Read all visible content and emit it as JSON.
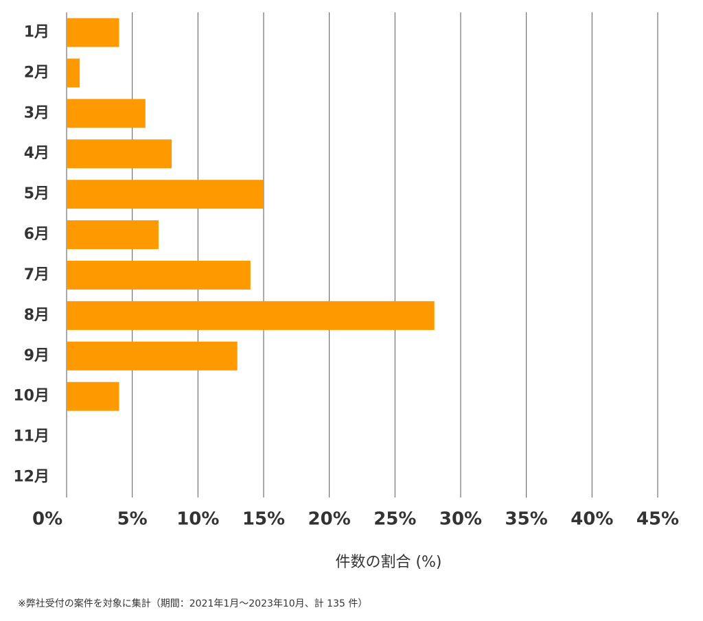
{
  "chart_data": {
    "type": "barh",
    "x_axis_label": "件数の割合 (%)",
    "footnote": "※弊社受付の案件を対象に集計（期間：2021年1月～2023年10月、計 135 件）",
    "categories": [
      "1月",
      "2月",
      "3月",
      "4月",
      "5月",
      "6月",
      "7月",
      "8月",
      "9月",
      "10月",
      "11月",
      "12月"
    ],
    "values": [
      4.0,
      1.0,
      6.0,
      8.0,
      15.0,
      7.0,
      14.0,
      28.0,
      13.0,
      4.0,
      0,
      0
    ],
    "color": "#ff9900",
    "xlim": [
      0,
      45
    ],
    "xticks": [
      {
        "value": 0,
        "label": "0%"
      },
      {
        "value": 5,
        "label": "5%"
      },
      {
        "value": 10,
        "label": "10%"
      },
      {
        "value": 15,
        "label": "15%"
      },
      {
        "value": 20,
        "label": "20%"
      },
      {
        "value": 25,
        "label": "25%"
      },
      {
        "value": 30,
        "label": "30%"
      },
      {
        "value": 35,
        "label": "35%"
      },
      {
        "value": 40,
        "label": "40%"
      },
      {
        "value": 45,
        "label": "45%"
      }
    ],
    "grid": true
  }
}
